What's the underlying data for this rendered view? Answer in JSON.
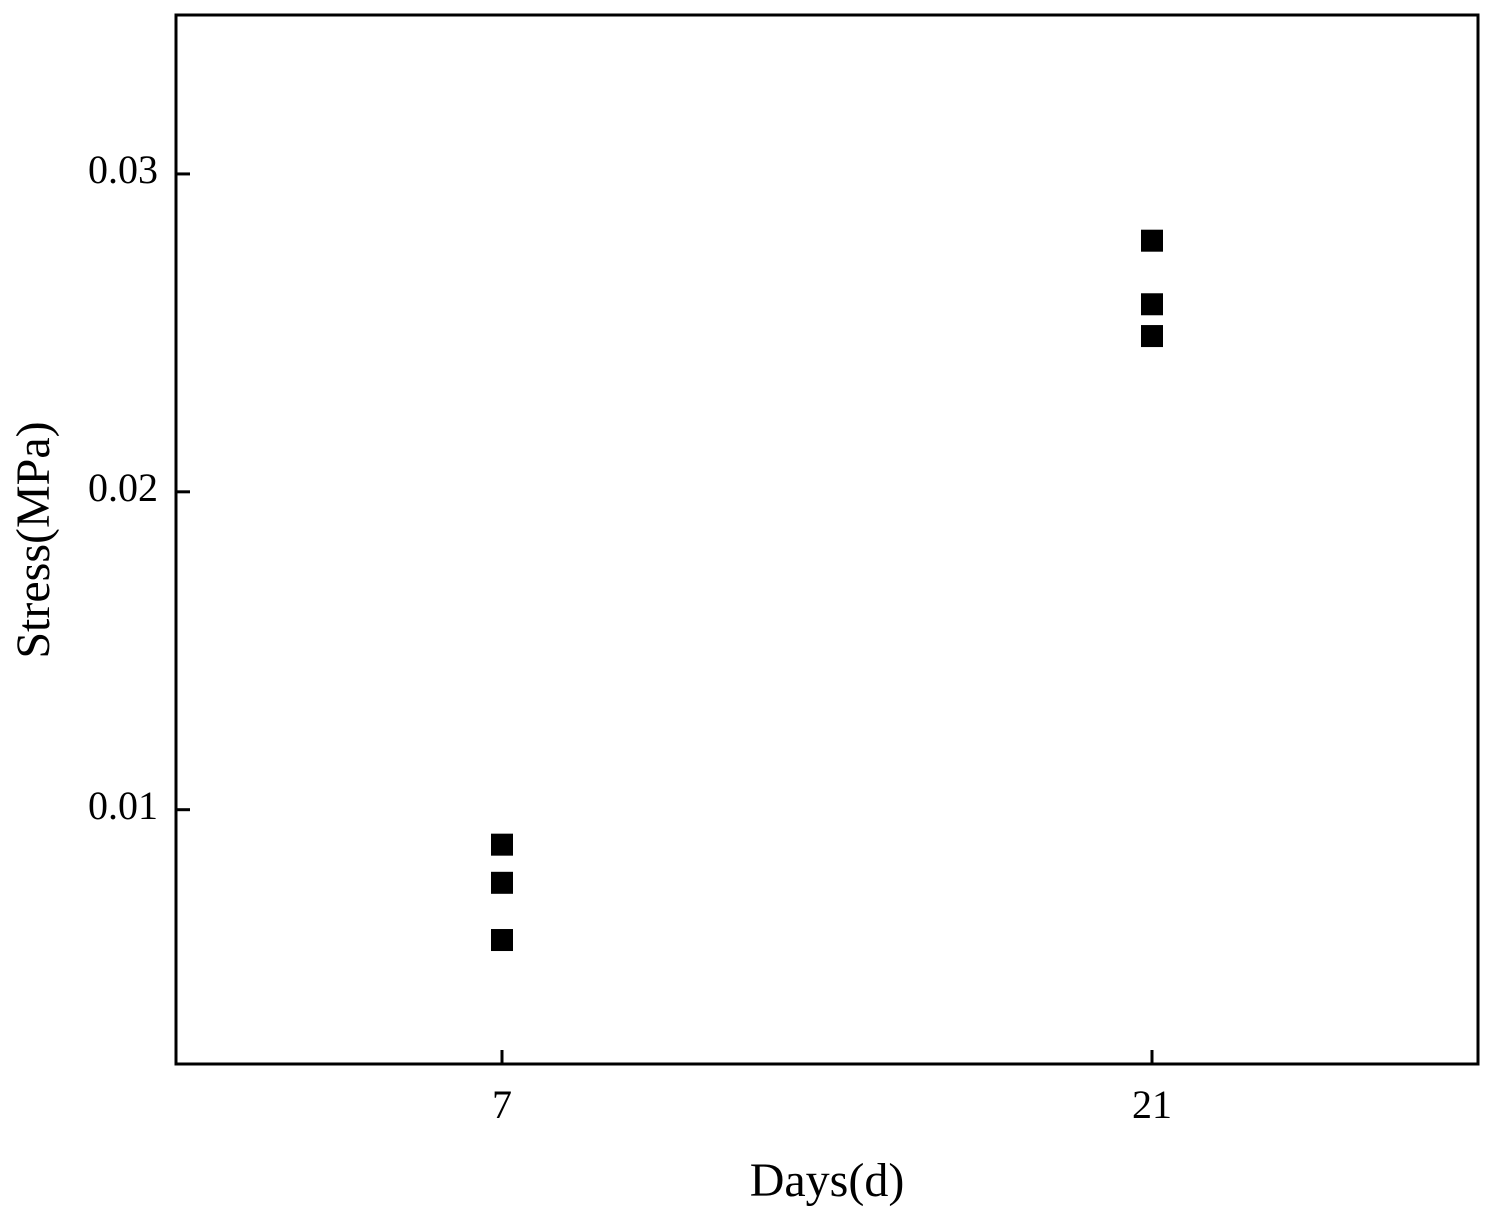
{
  "chart_data": {
    "type": "scatter",
    "title": "",
    "xlabel": "Days(d)",
    "ylabel": "Stress(MPa)",
    "x_categories": [
      "7",
      "21"
    ],
    "y_ticks": [
      "0.01",
      "0.02",
      "0.03"
    ],
    "ylim": [
      0.002,
      0.035
    ],
    "grid": false,
    "marker": "filled-square",
    "marker_color": "#000000",
    "series": [
      {
        "points": [
          {
            "x": "7",
            "y": 0.0089
          },
          {
            "x": "7",
            "y": 0.0077
          },
          {
            "x": "7",
            "y": 0.0059
          },
          {
            "x": "21",
            "y": 0.0279
          },
          {
            "x": "21",
            "y": 0.0259
          },
          {
            "x": "21",
            "y": 0.0249
          }
        ]
      }
    ]
  }
}
